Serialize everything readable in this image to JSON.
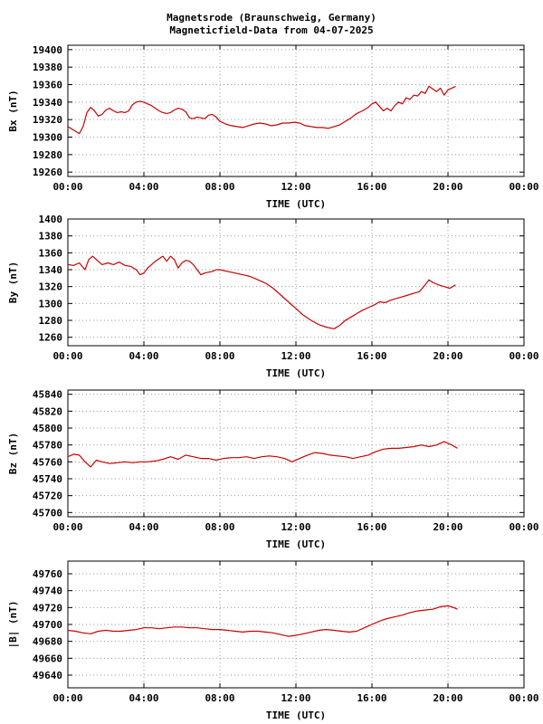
{
  "title": {
    "line1": "Magnetsrode (Braunschweig, Germany)",
    "line2": "Magneticfield-Data from 04-07-2025"
  },
  "chart_data": [
    {
      "type": "line",
      "ylabel": "Bx (nT)",
      "xlabel": "TIME (UTC)",
      "xlim": [
        0,
        24
      ],
      "ylim": [
        19255,
        19405
      ],
      "yticks": [
        19260,
        19280,
        19300,
        19320,
        19340,
        19360,
        19380,
        19400
      ],
      "xtick_labels": [
        "00:00",
        "04:00",
        "08:00",
        "12:00",
        "16:00",
        "20:00",
        "00:00"
      ],
      "grid": true,
      "series": [
        {
          "color": "#cc0000",
          "x": [
            0.0,
            0.3,
            0.6,
            0.8,
            1.0,
            1.2,
            1.4,
            1.6,
            1.8,
            2.0,
            2.2,
            2.4,
            2.6,
            2.8,
            3.0,
            3.2,
            3.4,
            3.6,
            3.8,
            4.0,
            4.2,
            4.4,
            4.6,
            4.8,
            5.0,
            5.2,
            5.4,
            5.6,
            5.8,
            6.0,
            6.2,
            6.4,
            6.6,
            6.8,
            7.0,
            7.2,
            7.4,
            7.6,
            7.8,
            8.0,
            8.3,
            8.6,
            8.9,
            9.2,
            9.5,
            9.8,
            10.1,
            10.4,
            10.7,
            11.0,
            11.3,
            11.6,
            11.9,
            12.2,
            12.5,
            12.8,
            13.1,
            13.4,
            13.7,
            14.0,
            14.3,
            14.6,
            14.9,
            15.2,
            15.5,
            15.8,
            16.0,
            16.2,
            16.4,
            16.6,
            16.8,
            17.0,
            17.2,
            17.4,
            17.6,
            17.8,
            18.0,
            18.2,
            18.4,
            18.6,
            18.8,
            19.0,
            19.2,
            19.4,
            19.6,
            19.8,
            20.0,
            20.2,
            20.4
          ],
          "y": [
            19312,
            19308,
            19304,
            19312,
            19328,
            19334,
            19330,
            19324,
            19326,
            19331,
            19333,
            19330,
            19328,
            19329,
            19328,
            19330,
            19337,
            19340,
            19341,
            19340,
            19338,
            19336,
            19333,
            19330,
            19328,
            19327,
            19328,
            19331,
            19333,
            19332,
            19329,
            19322,
            19321,
            19323,
            19322,
            19321,
            19325,
            19326,
            19323,
            19318,
            19315,
            19313,
            19312,
            19311,
            19313,
            19315,
            19316,
            19315,
            19313,
            19314,
            19316,
            19316,
            19317,
            19316,
            19313,
            19312,
            19311,
            19311,
            19310,
            19312,
            19314,
            19318,
            19322,
            19327,
            19330,
            19334,
            19338,
            19340,
            19335,
            19330,
            19333,
            19330,
            19336,
            19340,
            19338,
            19345,
            19343,
            19348,
            19347,
            19352,
            19350,
            19358,
            19355,
            19352,
            19356,
            19348,
            19354,
            19356,
            19358
          ]
        }
      ]
    },
    {
      "type": "line",
      "ylabel": "By (nT)",
      "xlabel": "TIME (UTC)",
      "xlim": [
        0,
        24
      ],
      "ylim": [
        1250,
        1400
      ],
      "yticks": [
        1260,
        1280,
        1300,
        1320,
        1340,
        1360,
        1380,
        1400
      ],
      "xtick_labels": [
        "00:00",
        "04:00",
        "08:00",
        "12:00",
        "16:00",
        "20:00",
        "00:00"
      ],
      "grid": true,
      "series": [
        {
          "color": "#cc0000",
          "x": [
            0.0,
            0.3,
            0.6,
            0.9,
            1.1,
            1.3,
            1.5,
            1.8,
            2.1,
            2.4,
            2.7,
            3.0,
            3.3,
            3.6,
            3.8,
            4.0,
            4.2,
            4.4,
            4.6,
            4.8,
            5.0,
            5.2,
            5.4,
            5.6,
            5.8,
            6.0,
            6.2,
            6.4,
            6.6,
            6.8,
            7.0,
            7.2,
            7.4,
            7.6,
            7.8,
            8.0,
            8.4,
            8.8,
            9.2,
            9.6,
            10.0,
            10.4,
            10.8,
            11.2,
            11.6,
            12.0,
            12.4,
            12.8,
            13.2,
            13.6,
            14.0,
            14.3,
            14.6,
            14.9,
            15.2,
            15.5,
            15.8,
            16.1,
            16.4,
            16.7,
            17.0,
            17.3,
            17.6,
            17.9,
            18.2,
            18.5,
            18.8,
            19.0,
            19.2,
            19.5,
            19.8,
            20.1,
            20.4
          ],
          "y": [
            1346,
            1345,
            1348,
            1340,
            1352,
            1356,
            1352,
            1346,
            1348,
            1346,
            1349,
            1345,
            1344,
            1340,
            1334,
            1336,
            1342,
            1346,
            1350,
            1353,
            1356,
            1350,
            1356,
            1352,
            1342,
            1348,
            1351,
            1350,
            1346,
            1340,
            1334,
            1336,
            1337,
            1338,
            1340,
            1340,
            1338,
            1336,
            1334,
            1332,
            1328,
            1324,
            1318,
            1310,
            1302,
            1294,
            1286,
            1280,
            1275,
            1272,
            1270,
            1274,
            1280,
            1284,
            1288,
            1292,
            1295,
            1298,
            1302,
            1301,
            1304,
            1306,
            1308,
            1310,
            1312,
            1314,
            1322,
            1328,
            1325,
            1322,
            1320,
            1318,
            1322
          ]
        }
      ]
    },
    {
      "type": "line",
      "ylabel": "Bz (nT)",
      "xlabel": "TIME (UTC)",
      "xlim": [
        0,
        24
      ],
      "ylim": [
        45695,
        45845
      ],
      "yticks": [
        45700,
        45720,
        45740,
        45760,
        45780,
        45800,
        45820,
        45840
      ],
      "xtick_labels": [
        "00:00",
        "04:00",
        "08:00",
        "12:00",
        "16:00",
        "20:00",
        "00:00"
      ],
      "grid": true,
      "series": [
        {
          "color": "#cc0000",
          "x": [
            0.0,
            0.3,
            0.6,
            0.9,
            1.2,
            1.5,
            1.8,
            2.2,
            2.6,
            3.0,
            3.4,
            3.8,
            4.2,
            4.6,
            5.0,
            5.4,
            5.8,
            6.2,
            6.6,
            7.0,
            7.4,
            7.8,
            8.2,
            8.6,
            9.0,
            9.4,
            9.8,
            10.2,
            10.6,
            11.0,
            11.4,
            11.8,
            12.2,
            12.6,
            13.0,
            13.4,
            13.8,
            14.2,
            14.6,
            15.0,
            15.4,
            15.8,
            16.2,
            16.6,
            17.0,
            17.4,
            17.8,
            18.2,
            18.6,
            19.0,
            19.4,
            19.8,
            20.2,
            20.5
          ],
          "y": [
            45766,
            45769,
            45768,
            45760,
            45754,
            45762,
            45760,
            45758,
            45759,
            45760,
            45759,
            45760,
            45760,
            45761,
            45763,
            45766,
            45763,
            45768,
            45766,
            45764,
            45764,
            45762,
            45764,
            45765,
            45765,
            45766,
            45764,
            45766,
            45767,
            45766,
            45764,
            45760,
            45764,
            45768,
            45771,
            45770,
            45768,
            45767,
            45766,
            45764,
            45766,
            45768,
            45772,
            45775,
            45776,
            45776,
            45777,
            45778,
            45780,
            45778,
            45780,
            45784,
            45780,
            45776
          ]
        }
      ]
    },
    {
      "type": "line",
      "ylabel": "|B| (nT)",
      "xlabel": "TIME (UTC)",
      "xlim": [
        0,
        24
      ],
      "ylim": [
        49625,
        49775
      ],
      "yticks": [
        49640,
        49660,
        49680,
        49700,
        49720,
        49740,
        49760
      ],
      "xtick_labels": [
        "00:00",
        "04:00",
        "08:00",
        "12:00",
        "16:00",
        "20:00",
        "00:00"
      ],
      "grid": true,
      "series": [
        {
          "color": "#cc0000",
          "x": [
            0.0,
            0.4,
            0.8,
            1.2,
            1.6,
            2.0,
            2.4,
            2.8,
            3.2,
            3.6,
            4.0,
            4.4,
            4.8,
            5.2,
            5.6,
            6.0,
            6.4,
            6.8,
            7.2,
            7.6,
            8.0,
            8.4,
            8.8,
            9.2,
            9.6,
            10.0,
            10.4,
            10.8,
            11.2,
            11.6,
            12.0,
            12.4,
            12.8,
            13.2,
            13.6,
            14.0,
            14.4,
            14.8,
            15.2,
            15.6,
            16.0,
            16.4,
            16.8,
            17.2,
            17.6,
            18.0,
            18.4,
            18.8,
            19.2,
            19.6,
            20.0,
            20.3,
            20.5
          ],
          "y": [
            49693,
            49692,
            49690,
            49689,
            49692,
            49693,
            49692,
            49692,
            49693,
            49694,
            49696,
            49696,
            49695,
            49696,
            49697,
            49697,
            49696,
            49696,
            49695,
            49694,
            49694,
            49693,
            49692,
            49691,
            49692,
            49692,
            49691,
            49690,
            49688,
            49686,
            49687,
            49689,
            49691,
            49693,
            49694,
            49693,
            49692,
            49691,
            49692,
            49696,
            49700,
            49704,
            49707,
            49709,
            49711,
            49714,
            49716,
            49717,
            49718,
            49721,
            49722,
            49720,
            49718
          ]
        }
      ]
    }
  ]
}
